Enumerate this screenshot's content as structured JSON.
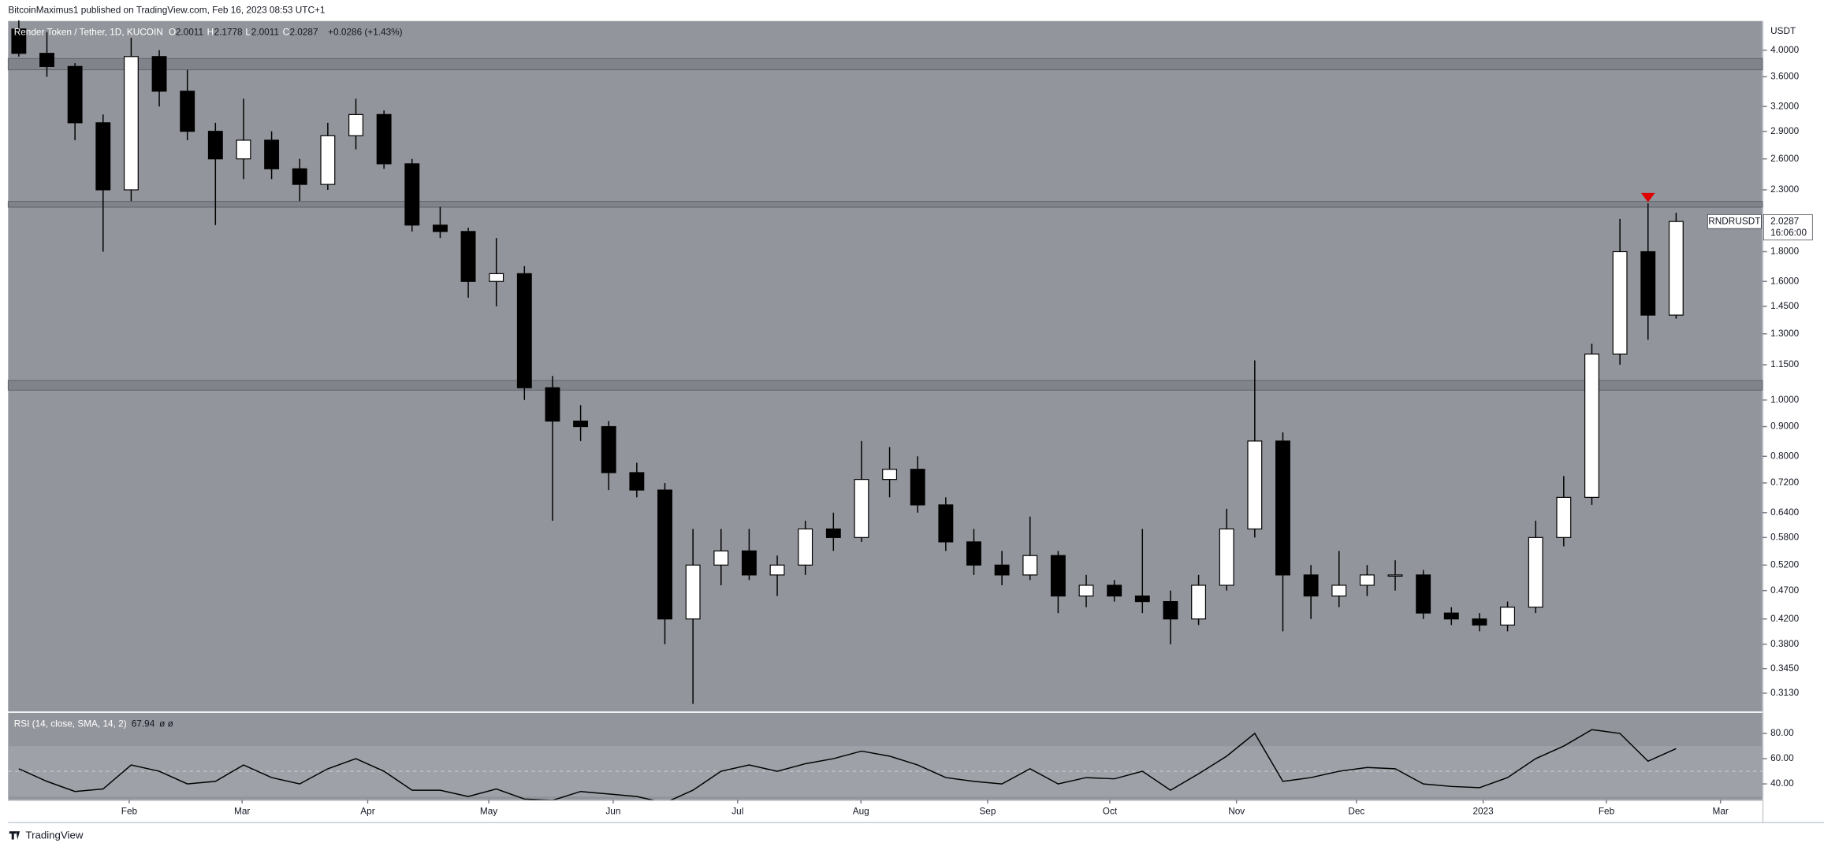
{
  "header": {
    "publisher": "BitcoinMaximus1 published on TradingView.com, Feb 16, 2023 08:53 UTC+1"
  },
  "footer": {
    "brand": "TradingView"
  },
  "chart_data": [
    {
      "type": "candlestick",
      "title": "Render Token / Tether, 1D, KUCOIN",
      "ohlc_labels": [
        "O",
        "H",
        "L",
        "C"
      ],
      "ohlc_values": [
        2.0011,
        2.1778,
        2.0011,
        2.0287
      ],
      "change": "+0.0286 (+1.43%)",
      "symbol": "RNDRUSDT",
      "countdown": "16:06:00",
      "currency": "USDT",
      "categories": [
        null,
        null,
        null,
        null,
        null,
        null,
        null,
        null,
        null,
        null,
        null,
        null,
        null,
        null,
        null,
        null,
        null,
        null,
        null,
        null,
        null,
        null,
        null,
        null,
        null,
        null,
        null,
        null,
        null,
        null,
        null,
        null,
        null,
        null,
        null,
        null,
        null,
        null,
        null,
        null,
        null,
        null,
        null,
        null,
        null,
        null,
        null,
        null,
        null,
        null,
        null,
        null,
        null,
        null,
        null,
        null,
        null,
        null,
        null,
        null
      ],
      "open": [
        4.35,
        3.95,
        3.75,
        3.0,
        2.3,
        3.9,
        3.4,
        2.9,
        2.6,
        2.8,
        2.5,
        2.35,
        2.85,
        3.1,
        2.55,
        2.0,
        1.95,
        1.6,
        1.65,
        1.05,
        0.92,
        0.9,
        0.75,
        0.7,
        0.42,
        0.52,
        0.55,
        0.5,
        0.52,
        0.6,
        0.58,
        0.73,
        0.76,
        0.66,
        0.57,
        0.52,
        0.5,
        0.54,
        0.46,
        0.48,
        0.46,
        0.45,
        0.42,
        0.48,
        0.6,
        0.85,
        0.5,
        0.46,
        0.48,
        0.5,
        0.5,
        0.43,
        0.42,
        0.41,
        0.44,
        0.58,
        0.68,
        1.2,
        1.8,
        1.4
      ],
      "high": [
        4.5,
        4.3,
        3.8,
        3.1,
        4.2,
        4.0,
        3.7,
        3.0,
        3.3,
        2.9,
        2.6,
        3.0,
        3.3,
        3.15,
        2.6,
        2.15,
        1.98,
        1.9,
        1.7,
        1.1,
        0.98,
        0.92,
        0.78,
        0.72,
        0.6,
        0.6,
        0.6,
        0.54,
        0.62,
        0.64,
        0.85,
        0.83,
        0.8,
        0.68,
        0.6,
        0.55,
        0.63,
        0.55,
        0.5,
        0.49,
        0.6,
        0.47,
        0.5,
        0.65,
        1.17,
        0.88,
        0.52,
        0.55,
        0.52,
        0.53,
        0.51,
        0.44,
        0.43,
        0.45,
        0.62,
        0.74,
        1.25,
        2.05,
        2.18,
        2.1
      ],
      "low": [
        3.9,
        3.6,
        2.8,
        1.8,
        2.2,
        3.2,
        2.8,
        2.0,
        2.4,
        2.4,
        2.2,
        2.3,
        2.7,
        2.5,
        1.95,
        1.9,
        1.5,
        1.45,
        1.0,
        0.62,
        0.85,
        0.7,
        0.68,
        0.38,
        0.3,
        0.48,
        0.49,
        0.46,
        0.5,
        0.55,
        0.57,
        0.68,
        0.64,
        0.55,
        0.5,
        0.48,
        0.49,
        0.43,
        0.44,
        0.45,
        0.43,
        0.38,
        0.41,
        0.47,
        0.58,
        0.4,
        0.42,
        0.44,
        0.46,
        0.47,
        0.42,
        0.41,
        0.4,
        0.4,
        0.43,
        0.56,
        0.66,
        1.15,
        1.27,
        1.38
      ],
      "close": [
        3.95,
        3.75,
        3.0,
        2.3,
        3.9,
        3.4,
        2.9,
        2.6,
        2.8,
        2.5,
        2.35,
        2.85,
        3.1,
        2.55,
        2.0,
        1.95,
        1.6,
        1.65,
        1.05,
        0.92,
        0.9,
        0.75,
        0.7,
        0.42,
        0.52,
        0.55,
        0.5,
        0.52,
        0.6,
        0.58,
        0.73,
        0.76,
        0.66,
        0.57,
        0.52,
        0.5,
        0.54,
        0.46,
        0.48,
        0.46,
        0.45,
        0.42,
        0.48,
        0.6,
        0.85,
        0.5,
        0.46,
        0.48,
        0.5,
        0.5,
        0.43,
        0.42,
        0.41,
        0.44,
        0.58,
        0.68,
        1.2,
        1.8,
        1.4,
        2.0287
      ],
      "up_color": "#ffffff",
      "down_color": "#000000",
      "background": "#93959c",
      "zones": [
        [
          3.7,
          3.87
        ],
        [
          2.147,
          2.197
        ],
        [
          1.04,
          1.081
        ]
      ],
      "zone_color": "#7b7e86",
      "marker_color": "#e00000",
      "log_scale": true,
      "ylim": [
        0.291,
        4.49
      ],
      "yticks": [
        {
          "value": 4.0,
          "label": "4.0000"
        },
        {
          "value": 3.6,
          "label": "3.6000"
        },
        {
          "value": 3.2,
          "label": "3.2000"
        },
        {
          "value": 2.9,
          "label": "2.9000"
        },
        {
          "value": 2.6,
          "label": "2.6000"
        },
        {
          "value": 2.3,
          "label": "2.3000"
        },
        {
          "value": 1.8,
          "label": "1.8000"
        },
        {
          "value": 1.6,
          "label": "1.6000"
        },
        {
          "value": 1.45,
          "label": "1.4500"
        },
        {
          "value": 1.3,
          "label": "1.3000"
        },
        {
          "value": 1.15,
          "label": "1.1500"
        },
        {
          "value": 1.0,
          "label": "1.0000"
        },
        {
          "value": 0.9,
          "label": "0.9000"
        },
        {
          "value": 0.8,
          "label": "0.8000"
        },
        {
          "value": 0.72,
          "label": "0.7200"
        },
        {
          "value": 0.64,
          "label": "0.6400"
        },
        {
          "value": 0.58,
          "label": "0.5800"
        },
        {
          "value": 0.52,
          "label": "0.5200"
        },
        {
          "value": 0.47,
          "label": "0.4700"
        },
        {
          "value": 0.42,
          "label": "0.4200"
        },
        {
          "value": 0.38,
          "label": "0.3800"
        },
        {
          "value": 0.345,
          "label": "0.3450"
        },
        {
          "value": 0.313,
          "label": "0.3130"
        }
      ],
      "xlim": [
        0.12,
        62.57
      ],
      "xticks": [
        {
          "value": 4.43,
          "label": "Feb"
        },
        {
          "value": 8.45,
          "label": "Mar"
        },
        {
          "value": 12.92,
          "label": "Apr"
        },
        {
          "value": 17.23,
          "label": "May"
        },
        {
          "value": 21.66,
          "label": "Jun"
        },
        {
          "value": 26.09,
          "label": "Jul"
        },
        {
          "value": 30.48,
          "label": "Aug"
        },
        {
          "value": 34.99,
          "label": "Sep"
        },
        {
          "value": 39.34,
          "label": "Oct"
        },
        {
          "value": 43.85,
          "label": "Nov"
        },
        {
          "value": 48.12,
          "label": "Dec"
        },
        {
          "value": 52.63,
          "label": "2023"
        },
        {
          "value": 57.02,
          "label": "Feb"
        },
        {
          "value": 61.08,
          "label": "Mar"
        }
      ]
    },
    {
      "type": "line",
      "title": "RSI (14, close, SMA, 14, 2)",
      "last_value": 67.94,
      "flags": "ø ø",
      "color": "#000000",
      "values": [
        52,
        42,
        34,
        36,
        55,
        50,
        40,
        42,
        55,
        45,
        40,
        52,
        60,
        50,
        35,
        35,
        30,
        36,
        28,
        27,
        34,
        32,
        30,
        25,
        35,
        50,
        55,
        50,
        56,
        60,
        66,
        62,
        55,
        45,
        42,
        40,
        52,
        40,
        45,
        44,
        50,
        35,
        48,
        62,
        80,
        42,
        45,
        50,
        53,
        52,
        40,
        38,
        37,
        45,
        60,
        70,
        83,
        80,
        58,
        67.94
      ],
      "ylim": [
        27.3,
        96.4
      ],
      "band": [
        30,
        70
      ],
      "band_color": "#9ea1a8",
      "midline": 50,
      "yticks": [
        {
          "value": 80,
          "label": "80.00"
        },
        {
          "value": 60,
          "label": "60.00"
        },
        {
          "value": 40,
          "label": "40.00"
        }
      ]
    }
  ]
}
